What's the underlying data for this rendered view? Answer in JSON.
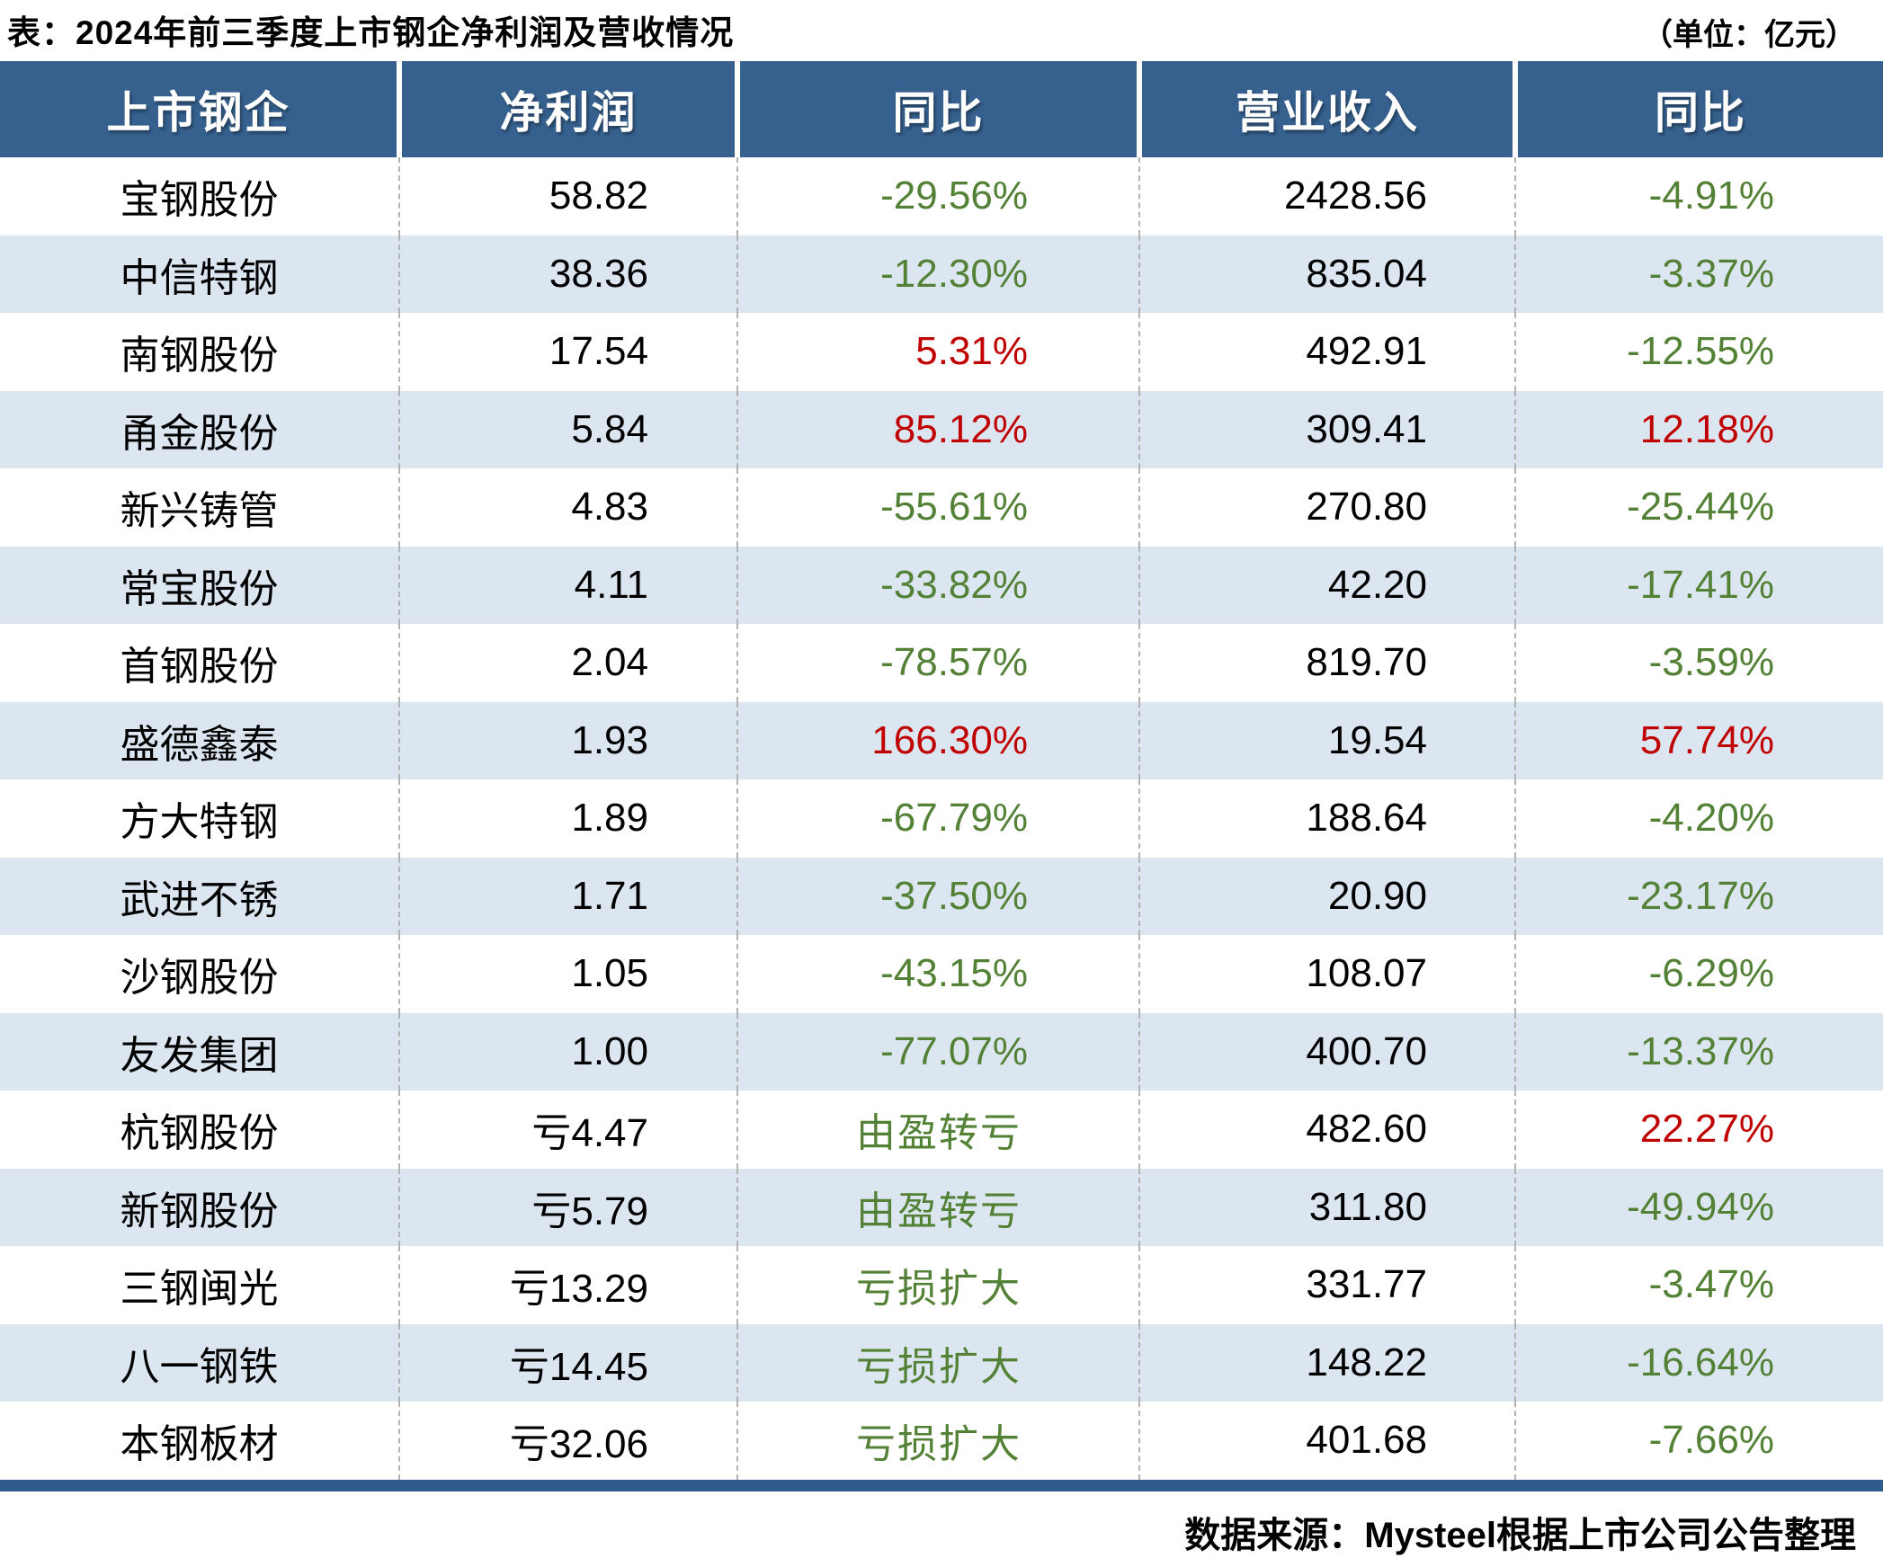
{
  "page_title": "表：2024年前三季度上市钢企净利润及营收情况",
  "unit_note": "（单位：亿元）",
  "source_note": "数据来源：Mysteel根据上市公司公告整理",
  "colors": {
    "header_bg": "#36618F",
    "bottom_bar": "#2F5B8D",
    "row_alt_bg": "#DCE6F1",
    "divider": "#B3B3B3",
    "green": "#538135",
    "red": "#C00000",
    "black": "#000000"
  },
  "chart_data": {
    "type": "table",
    "title": "2024年前三季度上市钢企净利润及营收情况",
    "unit": "亿元",
    "columns": [
      "上市钢企",
      "净利润",
      "同比",
      "营业收入",
      "同比"
    ],
    "rows": [
      {
        "company": "宝钢股份",
        "net_profit": "58.82",
        "net_profit_yoy": "-29.56%",
        "net_profit_yoy_color": "green",
        "revenue": "2428.56",
        "revenue_yoy": "-4.91%",
        "revenue_yoy_color": "green"
      },
      {
        "company": "中信特钢",
        "net_profit": "38.36",
        "net_profit_yoy": "-12.30%",
        "net_profit_yoy_color": "green",
        "revenue": "835.04",
        "revenue_yoy": "-3.37%",
        "revenue_yoy_color": "green"
      },
      {
        "company": "南钢股份",
        "net_profit": "17.54",
        "net_profit_yoy": "5.31%",
        "net_profit_yoy_color": "red",
        "revenue": "492.91",
        "revenue_yoy": "-12.55%",
        "revenue_yoy_color": "green"
      },
      {
        "company": "甬金股份",
        "net_profit": "5.84",
        "net_profit_yoy": "85.12%",
        "net_profit_yoy_color": "red",
        "revenue": "309.41",
        "revenue_yoy": "12.18%",
        "revenue_yoy_color": "red"
      },
      {
        "company": "新兴铸管",
        "net_profit": "4.83",
        "net_profit_yoy": "-55.61%",
        "net_profit_yoy_color": "green",
        "revenue": "270.80",
        "revenue_yoy": "-25.44%",
        "revenue_yoy_color": "green"
      },
      {
        "company": "常宝股份",
        "net_profit": "4.11",
        "net_profit_yoy": "-33.82%",
        "net_profit_yoy_color": "green",
        "revenue": "42.20",
        "revenue_yoy": "-17.41%",
        "revenue_yoy_color": "green"
      },
      {
        "company": "首钢股份",
        "net_profit": "2.04",
        "net_profit_yoy": "-78.57%",
        "net_profit_yoy_color": "green",
        "revenue": "819.70",
        "revenue_yoy": "-3.59%",
        "revenue_yoy_color": "green"
      },
      {
        "company": "盛德鑫泰",
        "net_profit": "1.93",
        "net_profit_yoy": "166.30%",
        "net_profit_yoy_color": "red",
        "revenue": "19.54",
        "revenue_yoy": "57.74%",
        "revenue_yoy_color": "red"
      },
      {
        "company": "方大特钢",
        "net_profit": "1.89",
        "net_profit_yoy": "-67.79%",
        "net_profit_yoy_color": "green",
        "revenue": "188.64",
        "revenue_yoy": "-4.20%",
        "revenue_yoy_color": "green"
      },
      {
        "company": "武进不锈",
        "net_profit": "1.71",
        "net_profit_yoy": "-37.50%",
        "net_profit_yoy_color": "green",
        "revenue": "20.90",
        "revenue_yoy": "-23.17%",
        "revenue_yoy_color": "green"
      },
      {
        "company": "沙钢股份",
        "net_profit": "1.05",
        "net_profit_yoy": "-43.15%",
        "net_profit_yoy_color": "green",
        "revenue": "108.07",
        "revenue_yoy": "-6.29%",
        "revenue_yoy_color": "green"
      },
      {
        "company": "友发集团",
        "net_profit": "1.00",
        "net_profit_yoy": "-77.07%",
        "net_profit_yoy_color": "green",
        "revenue": "400.70",
        "revenue_yoy": "-13.37%",
        "revenue_yoy_color": "green"
      },
      {
        "company": "杭钢股份",
        "net_profit": "亏4.47",
        "net_profit_yoy": "由盈转亏",
        "net_profit_yoy_color": "green",
        "revenue": "482.60",
        "revenue_yoy": "22.27%",
        "revenue_yoy_color": "red"
      },
      {
        "company": "新钢股份",
        "net_profit": "亏5.79",
        "net_profit_yoy": "由盈转亏",
        "net_profit_yoy_color": "green",
        "revenue": "311.80",
        "revenue_yoy": "-49.94%",
        "revenue_yoy_color": "green"
      },
      {
        "company": "三钢闽光",
        "net_profit": "亏13.29",
        "net_profit_yoy": "亏损扩大",
        "net_profit_yoy_color": "green",
        "revenue": "331.77",
        "revenue_yoy": "-3.47%",
        "revenue_yoy_color": "green"
      },
      {
        "company": "八一钢铁",
        "net_profit": "亏14.45",
        "net_profit_yoy": "亏损扩大",
        "net_profit_yoy_color": "green",
        "revenue": "148.22",
        "revenue_yoy": "-16.64%",
        "revenue_yoy_color": "green"
      },
      {
        "company": "本钢板材",
        "net_profit": "亏32.06",
        "net_profit_yoy": "亏损扩大",
        "net_profit_yoy_color": "green",
        "revenue": "401.68",
        "revenue_yoy": "-7.66%",
        "revenue_yoy_color": "green"
      }
    ]
  }
}
